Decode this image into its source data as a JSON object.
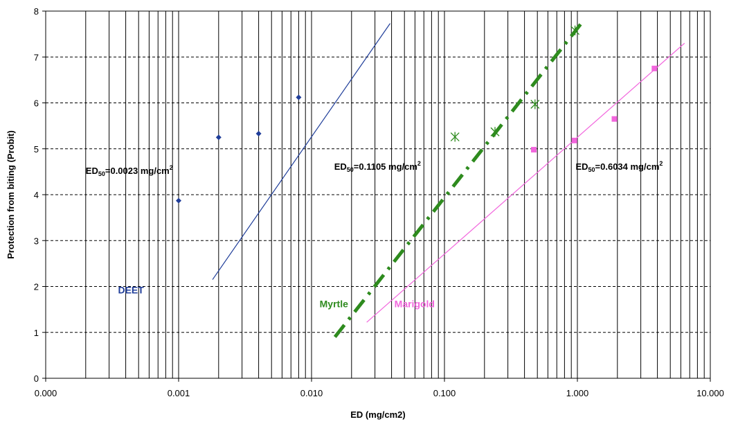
{
  "chart_data": {
    "type": "scatter",
    "xscale": "log",
    "xlabel": "ED (mg/cm2)",
    "ylabel": "Protection from biting (Probit)",
    "xlim": [
      0.0001,
      10
    ],
    "ylim": [
      0,
      8
    ],
    "x_ticks": [
      0.0001,
      0.001,
      0.01,
      0.1,
      1,
      10
    ],
    "x_tick_labels": [
      "0.000",
      "0.001",
      "0.010",
      "0.100",
      "1.000",
      "10.000"
    ],
    "y_ticks": [
      0,
      1,
      2,
      3,
      4,
      5,
      6,
      7,
      8
    ],
    "y_tick_labels": [
      "0",
      "1",
      "2",
      "3",
      "4",
      "5",
      "6",
      "7",
      "8"
    ],
    "grid": true,
    "series": [
      {
        "name": "DEET",
        "color": "#1f3d99",
        "marker": "diamond",
        "line_style": "solid",
        "points": [
          [
            0.001,
            3.87
          ],
          [
            0.002,
            5.25
          ],
          [
            0.004,
            5.33
          ],
          [
            0.008,
            6.12
          ]
        ],
        "fit_line": [
          [
            0.0018,
            2.15
          ],
          [
            0.039,
            7.73
          ]
        ]
      },
      {
        "name": "Myrtle",
        "color": "#2e8b1e",
        "marker": "asterisk",
        "line_style": "dash-dot",
        "points": [
          [
            0.12,
            5.26
          ],
          [
            0.24,
            5.37
          ],
          [
            0.48,
            5.97
          ],
          [
            0.96,
            7.58
          ]
        ],
        "fit_line": [
          [
            0.015,
            0.9
          ],
          [
            1.13,
            7.82
          ]
        ]
      },
      {
        "name": "Marigold",
        "color": "#f266dd",
        "marker": "square",
        "line_style": "solid",
        "points": [
          [
            0.47,
            4.98
          ],
          [
            0.95,
            5.18
          ],
          [
            1.9,
            5.65
          ],
          [
            3.8,
            6.75
          ]
        ],
        "fit_line": [
          [
            0.026,
            1.22
          ],
          [
            6.4,
            7.3
          ]
        ]
      }
    ],
    "annotations": [
      {
        "prefix": "ED",
        "sub": "50",
        "value": "=0.0023  mg/cm",
        "sup": "2",
        "x": 0.0002,
        "y": 4.45
      },
      {
        "prefix": "ED",
        "sub": "50",
        "value": "=0.1105  mg/cm",
        "sup": "2",
        "x": 0.0148,
        "y": 4.54
      },
      {
        "prefix": "ED",
        "sub": "50",
        "value": "=0.6034  mg/cm",
        "sup": "2",
        "x": 0.97,
        "y": 4.54
      }
    ],
    "series_labels": [
      {
        "text": "DEET",
        "x": 0.00035,
        "y": 1.85
      },
      {
        "text": "Myrtle",
        "x": 0.0115,
        "y": 1.55
      },
      {
        "text": "Marigold",
        "x": 0.042,
        "y": 1.55
      }
    ]
  }
}
